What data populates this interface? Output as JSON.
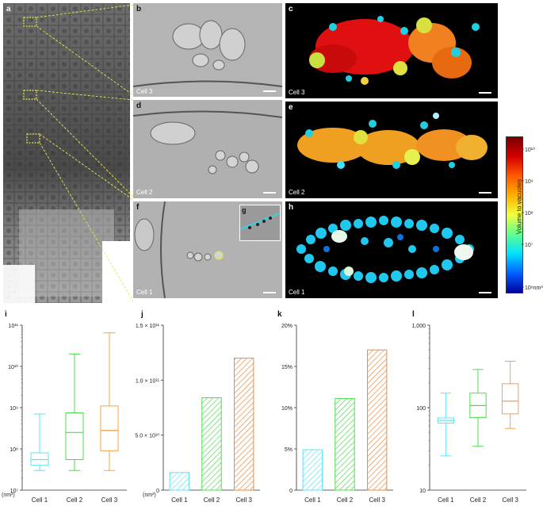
{
  "panels": {
    "a": "a",
    "b": "b",
    "c": "c",
    "d": "d",
    "e": "e",
    "f": "f",
    "g": "g",
    "h": "h",
    "i": "i",
    "j": "j",
    "k": "k",
    "l": "l"
  },
  "image_captions": {
    "b": "Cell 3",
    "c": "Cell 3",
    "d": "Cell 2",
    "e": "Cell 2",
    "f": "Cell 1",
    "h": "Cell 1"
  },
  "colorbar": {
    "label": "Volume to vacuoles",
    "ticks": [
      "10¹⁰",
      "10⁹",
      "10⁸",
      "10⁷",
      "10⁶nm³"
    ],
    "colors": [
      "#7a0000",
      "#d40000",
      "#ff5a00",
      "#ffb000",
      "#f0ff40",
      "#60ff90",
      "#00e0ff",
      "#0060ff",
      "#0000a0"
    ]
  },
  "chart_data": [
    {
      "panel": "i",
      "type": "box",
      "categories": [
        "Cell 1",
        "Cell 2",
        "Cell 3"
      ],
      "y_scale": "log",
      "ylim": [
        10000000.0,
        100000000000.0
      ],
      "y_ticks": [
        "10⁷",
        "10⁸",
        "10⁹",
        "10¹⁰",
        "10¹¹"
      ],
      "y_unit": "(nm³)",
      "boxes": [
        {
          "min": 30000000.0,
          "q1": 40000000.0,
          "median": 55000000.0,
          "q3": 80000000.0,
          "max": 700000000.0
        },
        {
          "min": 30000000.0,
          "q1": 55000000.0,
          "median": 250000000.0,
          "q3": 750000000.0,
          "max": 20000000000.0
        },
        {
          "min": 30000000.0,
          "q1": 90000000.0,
          "median": 280000000.0,
          "q3": 1100000000.0,
          "max": 65000000000.0
        }
      ],
      "colors": [
        "#5fe3ef",
        "#4ddc4d",
        "#f5a04a"
      ]
    },
    {
      "panel": "j",
      "type": "bar",
      "categories": [
        "Cell 1",
        "Cell 2",
        "Cell 3"
      ],
      "values": [
        16000000000.0,
        84000000000.0,
        120000000000.0
      ],
      "ylim": [
        0,
        150000000000.0
      ],
      "y_ticks": [
        "0",
        "5.0 × 10¹⁰",
        "1.0 × 10¹¹",
        "1.5 × 10¹¹"
      ],
      "y_unit": "(nm³)",
      "colors": [
        "#5fe3ef",
        "#4ddc4d",
        "#f08a3a"
      ]
    },
    {
      "panel": "k",
      "type": "bar",
      "categories": [
        "Cell 1",
        "Cell 2",
        "Cell 3"
      ],
      "values": [
        4.9,
        11.1,
        17.0
      ],
      "ylim": [
        0,
        20
      ],
      "y_ticks": [
        "0",
        "5%",
        "10%",
        "15%",
        "20%"
      ],
      "colors": [
        "#5fe3ef",
        "#4ddc4d",
        "#f08a3a"
      ]
    },
    {
      "panel": "l",
      "type": "box",
      "categories": [
        "Cell 1",
        "Cell 2",
        "Cell 3"
      ],
      "y_scale": "log",
      "ylim": [
        10,
        1000
      ],
      "y_ticks": [
        "10",
        "100",
        "1,000"
      ],
      "boxes": [
        {
          "min": 26,
          "q1": 65,
          "median": 70,
          "q3": 75,
          "max": 150
        },
        {
          "min": 34,
          "q1": 76,
          "median": 106,
          "q3": 150,
          "max": 290
        },
        {
          "min": 56,
          "q1": 84,
          "median": 120,
          "q3": 195,
          "max": 365
        }
      ],
      "colors": [
        "#5fe3ef",
        "#4ddc4d",
        "#f5a04a"
      ]
    }
  ]
}
